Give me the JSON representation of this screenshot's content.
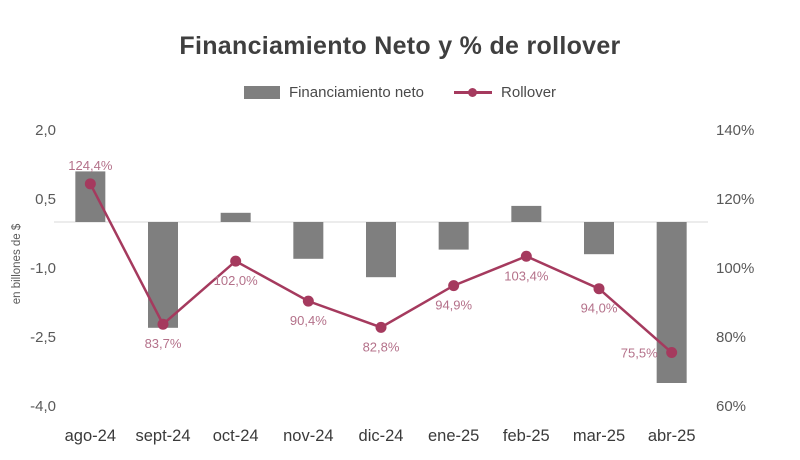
{
  "title": "Financiamiento Neto y % de rollover",
  "legend": {
    "bar_label": "Financiamiento neto",
    "line_label": "Rollover"
  },
  "left_axis": {
    "label": "en billones de $",
    "tick_labels": [
      "2,0",
      "0,5",
      "-1,0",
      "-2,5",
      "-4,0"
    ],
    "tick_values": [
      2.0,
      0.5,
      -1.0,
      -2.5,
      -4.0
    ],
    "range": [
      -4.0,
      2.0
    ]
  },
  "right_axis": {
    "tick_labels": [
      "140%",
      "120%",
      "100%",
      "80%",
      "60%"
    ],
    "tick_values": [
      140,
      120,
      100,
      80,
      60
    ],
    "range": [
      60,
      140
    ]
  },
  "chart_data": {
    "type": "bar+line combo",
    "title": "Financiamiento Neto y % de rollover",
    "categories": [
      "ago-24",
      "sept-24",
      "oct-24",
      "nov-24",
      "dic-24",
      "ene-25",
      "feb-25",
      "mar-25",
      "abr-25"
    ],
    "series": [
      {
        "name": "Financiamiento neto",
        "type": "bar",
        "axis": "left",
        "unit": "billones de $",
        "values": [
          1.1,
          -2.3,
          0.2,
          -0.8,
          -1.2,
          -0.6,
          0.35,
          -0.7,
          -3.5
        ]
      },
      {
        "name": "Rollover",
        "type": "line",
        "axis": "right",
        "unit": "%",
        "values": [
          124.4,
          83.7,
          102.0,
          90.4,
          82.8,
          94.9,
          103.4,
          94.0,
          75.5
        ],
        "labels": [
          "124,4%",
          "83,7%",
          "102,0%",
          "90,4%",
          "82,8%",
          "94,9%",
          "103,4%",
          "94,0%",
          "75,5%"
        ]
      }
    ],
    "layout": {
      "grid": "zero line only",
      "legend_position": "top center",
      "left_ylim": [
        -4.0,
        2.0
      ],
      "right_ylim": [
        60,
        140
      ]
    },
    "colors": {
      "bar": "#7f7f7f",
      "line": "#a53a5e",
      "point_label": "#b4718a",
      "zero_line": "#d9d9d9",
      "axis_text": "#595959",
      "xtick_text": "#3a3a3a",
      "title_text": "#3f3f3f",
      "legend_text": "#4a4a4a"
    }
  }
}
